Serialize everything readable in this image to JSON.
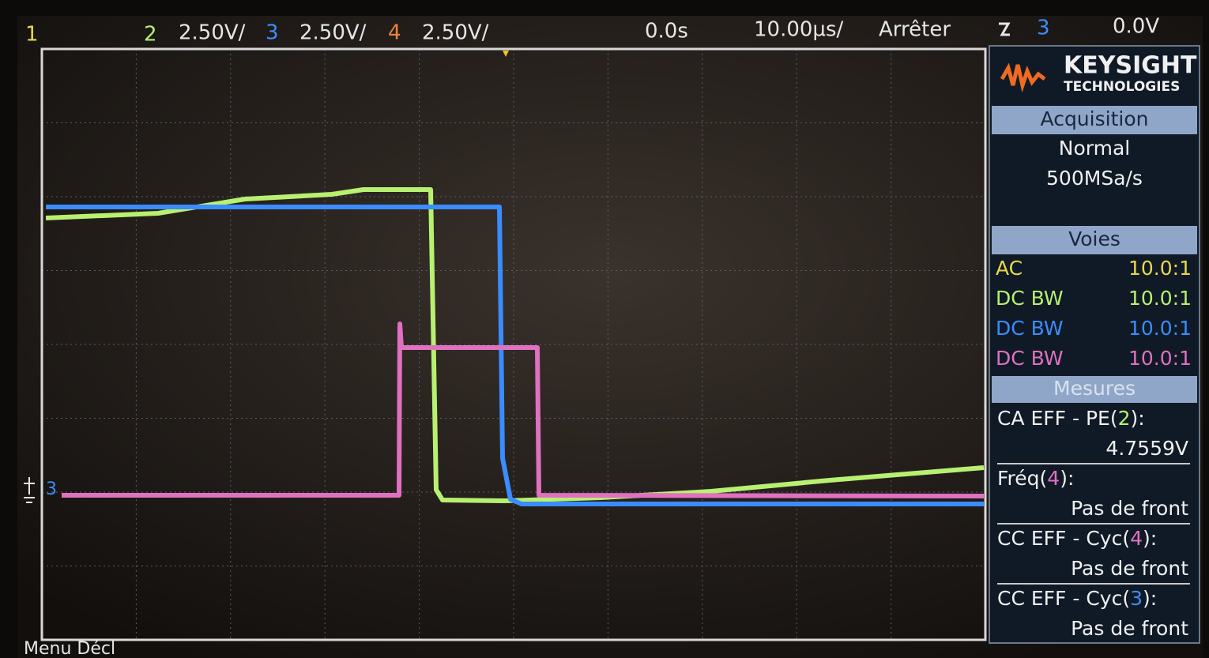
{
  "top_bar": {
    "left_channel": "1",
    "channels": [
      {
        "number": "2",
        "scale": "2.50V/"
      },
      {
        "number": "3",
        "scale": "2.50V/"
      },
      {
        "number": "4",
        "scale": "2.50V/"
      }
    ],
    "time_offset": "0.0s",
    "time_scale": "10.00µs/",
    "run_state": "Arrêter",
    "trigger_channel": "3",
    "trigger_level": "0.0V"
  },
  "brand": {
    "name": "KEYSIGHT",
    "sub": "TECHNOLOGIES"
  },
  "acquisition": {
    "title": "Acquisition",
    "mode": "Normal",
    "rate": "500MSa/s"
  },
  "channels_panel": {
    "title": "Voies",
    "rows": [
      {
        "coupling": "AC",
        "probe": "10.0:1"
      },
      {
        "coupling": "DC BW",
        "probe": "10.0:1"
      },
      {
        "coupling": "DC BW",
        "probe": "10.0:1"
      },
      {
        "coupling": "DC BW",
        "probe": "10.0:1"
      }
    ]
  },
  "measurements": {
    "title": "Mesures",
    "items": [
      {
        "prefix": "CA EFF - PE(",
        "channel": "2",
        "suffix": "):",
        "value": "4.7559V"
      },
      {
        "prefix": "Fréq(",
        "channel": "4",
        "suffix": "):",
        "value": "Pas de front"
      },
      {
        "prefix": "CC EFF - Cyc(",
        "channel": "4",
        "suffix": "):",
        "value": "Pas de front"
      },
      {
        "prefix": "CC EFF - Cyc(",
        "channel": "3",
        "suffix": "):",
        "value": "Pas de front"
      }
    ]
  },
  "ground_marker": "3",
  "bottom_label": "Menu Décl"
}
